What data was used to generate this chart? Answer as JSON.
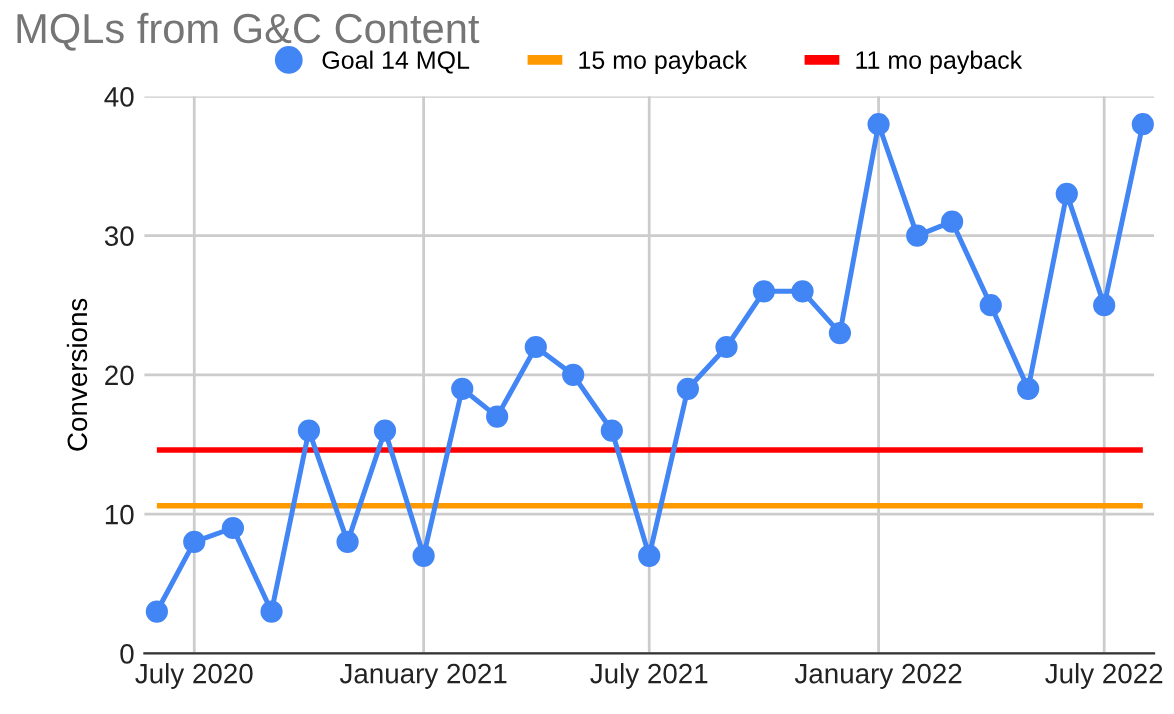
{
  "chart_data": {
    "type": "line",
    "title": "MQLs from G&C Content",
    "ylabel": "Conversions",
    "x": [
      "2020-06",
      "2020-07",
      "2020-08",
      "2020-09",
      "2020-10",
      "2020-11",
      "2020-12",
      "2021-01",
      "2021-02",
      "2021-03",
      "2021-04",
      "2021-05",
      "2021-06",
      "2021-07",
      "2021-08",
      "2021-09",
      "2021-10",
      "2021-11",
      "2021-12",
      "2022-01",
      "2022-02",
      "2022-03",
      "2022-04",
      "2022-05",
      "2022-06",
      "2022-07",
      "2022-08"
    ],
    "series": [
      {
        "name": "Goal 14 MQL",
        "color": "#4285f4",
        "values": [
          3,
          8,
          9,
          3,
          16,
          8,
          16,
          7,
          19,
          17,
          22,
          20,
          16,
          7,
          19,
          22,
          26,
          26,
          23,
          38,
          30,
          31,
          25,
          19,
          33,
          25,
          38
        ]
      }
    ],
    "ref_lines": [
      {
        "axis": "y",
        "value": 10.6,
        "label": "15 mo payback",
        "color": "#ff9900"
      },
      {
        "axis": "y",
        "value": 14.6,
        "label": "11 mo payback",
        "color": "#ff0000"
      }
    ],
    "ylim": [
      0,
      40
    ],
    "yticks": [
      0,
      10,
      20,
      30,
      40
    ],
    "xlim": [
      "2020-05-22",
      "2022-08-10"
    ],
    "xticks": [
      {
        "value": "2020-07",
        "label": "July 2020"
      },
      {
        "value": "2021-01",
        "label": "January 2021"
      },
      {
        "value": "2021-07",
        "label": "July 2021"
      },
      {
        "value": "2022-01",
        "label": "January 2022"
      },
      {
        "value": "2022-07",
        "label": "July 2022"
      }
    ],
    "grid": true,
    "legend": "top",
    "marker": "circle",
    "line_style": "solid"
  }
}
